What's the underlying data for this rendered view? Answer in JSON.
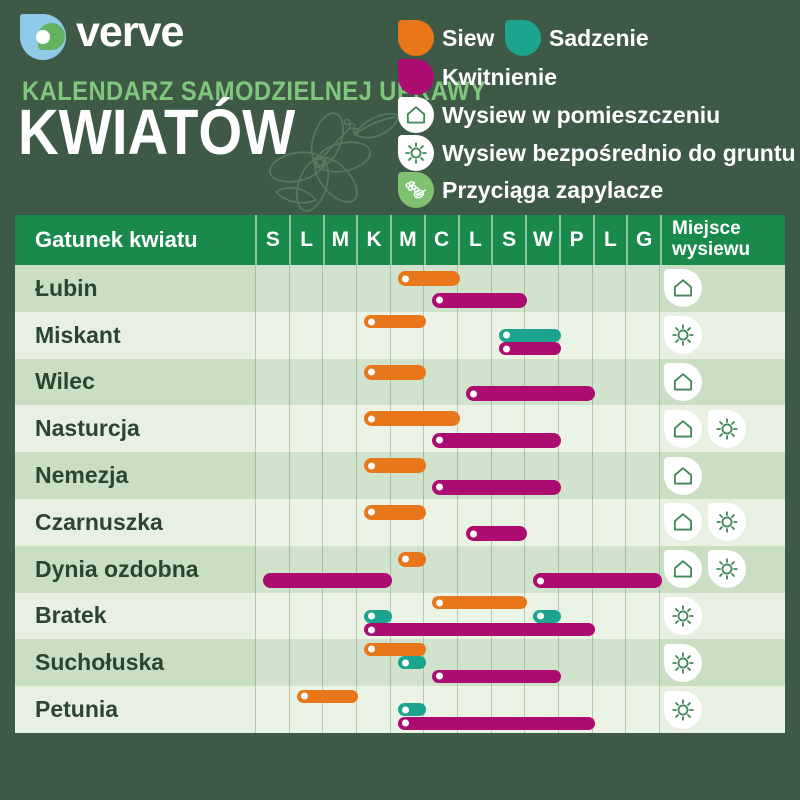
{
  "brand": {
    "logo_text": "verve",
    "logo_icon": "verve-drop-logo"
  },
  "header": {
    "subtitle": "KALENDARZ SAMODZIELNEJ UPRAWY",
    "title": "KWIATÓW"
  },
  "legend": {
    "siew": {
      "label": "Siew",
      "color": "#E8761B"
    },
    "sadzenie": {
      "label": "Sadzenie",
      "color": "#1CA48E"
    },
    "kwitnienie": {
      "label": "Kwitnienie",
      "color": "#AC0B70"
    },
    "indoor": {
      "label": "Wysiew w pomieszczeniu",
      "icon": "house-icon"
    },
    "direct": {
      "label": "Wysiew bezpośrednio do gruntu",
      "icon": "sun-icon"
    },
    "pollinators": {
      "label": "Przyciąga zapylacze",
      "icon": "pollinator-icon"
    }
  },
  "table": {
    "species_header": "Gatunek kwiatu",
    "place_header": "Miejsce wysiewu"
  },
  "colors": {
    "background": "#3E5A47",
    "table_header_green": "#198A4B",
    "row_dark": "#C9DEC3",
    "row_light": "#E8F1E1",
    "siew": "#E8761B",
    "sadzenie": "#1CA48E",
    "kwitnienie": "#AC0B70",
    "subtitle_green": "#7EC77D"
  },
  "chart_data": {
    "type": "table",
    "title": "Kalendarz samodzielnej uprawy kwiatów",
    "months": [
      "S",
      "L",
      "M",
      "K",
      "M",
      "C",
      "L",
      "S",
      "W",
      "P",
      "L",
      "G"
    ],
    "legend_position": "top-right",
    "rows": [
      {
        "name": "Łubin",
        "bars": [
          {
            "type": "siew",
            "start": 5,
            "end": 6
          },
          {
            "type": "kwitnienie",
            "start": 6,
            "end": 8
          }
        ],
        "icons": [
          "indoor"
        ]
      },
      {
        "name": "Miskant",
        "bars": [
          {
            "type": "siew",
            "start": 4,
            "end": 5
          },
          {
            "type": "sadzenie",
            "start": 8,
            "end": 9
          },
          {
            "type": "kwitnienie",
            "start": 8,
            "end": 9
          }
        ],
        "icons": [
          "direct"
        ]
      },
      {
        "name": "Wilec",
        "bars": [
          {
            "type": "siew",
            "start": 4,
            "end": 5
          },
          {
            "type": "kwitnienie",
            "start": 7,
            "end": 10
          }
        ],
        "icons": [
          "indoor"
        ]
      },
      {
        "name": "Nasturcja",
        "bars": [
          {
            "type": "siew",
            "start": 4,
            "end": 6
          },
          {
            "type": "kwitnienie",
            "start": 6,
            "end": 9
          }
        ],
        "icons": [
          "indoor",
          "direct"
        ]
      },
      {
        "name": "Nemezja",
        "bars": [
          {
            "type": "siew",
            "start": 4,
            "end": 5
          },
          {
            "type": "kwitnienie",
            "start": 6,
            "end": 9
          }
        ],
        "icons": [
          "indoor"
        ]
      },
      {
        "name": "Czarnuszka",
        "bars": [
          {
            "type": "siew",
            "start": 4,
            "end": 5
          },
          {
            "type": "kwitnienie",
            "start": 7,
            "end": 8
          }
        ],
        "icons": [
          "indoor",
          "direct"
        ]
      },
      {
        "name": "Dynia ozdobna",
        "bars": [
          {
            "type": "siew",
            "start": 5,
            "end": 5
          },
          {
            "type": "kwitnienie",
            "start": 1,
            "end": 4,
            "continuation": true
          },
          {
            "type": "kwitnienie",
            "start": 9,
            "end": 12
          }
        ],
        "icons": [
          "indoor",
          "direct"
        ]
      },
      {
        "name": "Bratek",
        "bars": [
          {
            "type": "siew",
            "start": 6,
            "end": 8
          },
          {
            "type": "sadzenie",
            "start": 4,
            "end": 4
          },
          {
            "type": "sadzenie",
            "start": 9,
            "end": 9
          },
          {
            "type": "kwitnienie",
            "start": 4,
            "end": 10
          }
        ],
        "icons": [
          "direct"
        ]
      },
      {
        "name": "Suchołuska",
        "bars": [
          {
            "type": "siew",
            "start": 4,
            "end": 5
          },
          {
            "type": "sadzenie",
            "start": 5,
            "end": 5
          },
          {
            "type": "kwitnienie",
            "start": 6,
            "end": 9
          }
        ],
        "icons": [
          "direct"
        ]
      },
      {
        "name": "Petunia",
        "bars": [
          {
            "type": "siew",
            "start": 2,
            "end": 3
          },
          {
            "type": "sadzenie",
            "start": 5,
            "end": 5
          },
          {
            "type": "kwitnienie",
            "start": 5,
            "end": 10
          }
        ],
        "icons": [
          "direct"
        ]
      }
    ]
  }
}
